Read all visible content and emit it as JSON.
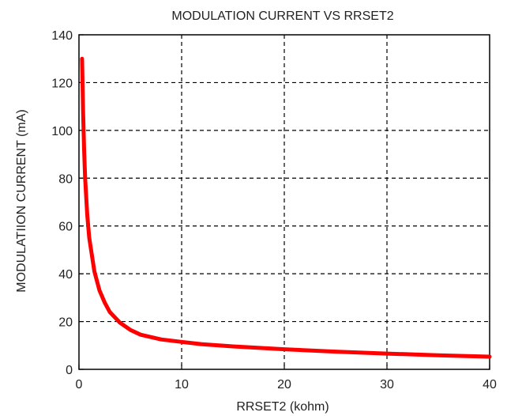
{
  "chart_data": {
    "type": "line",
    "title": "MODULATION CURRENT VS RRSET2",
    "xlabel": "RRSET2 (kohm)",
    "ylabel": "MODULATIION CURRENT (mA)",
    "xlim": [
      0,
      40
    ],
    "ylim": [
      0,
      140
    ],
    "xticks": [
      0,
      10,
      20,
      30,
      40
    ],
    "yticks": [
      0,
      20,
      40,
      60,
      80,
      100,
      120,
      140
    ],
    "grid": true,
    "grid_style": "dashed",
    "line_color": "#ff0000",
    "series": [
      {
        "x": [
          0.3,
          0.4,
          0.5,
          0.6,
          0.8,
          1,
          1.5,
          2,
          2.5,
          3,
          4,
          5,
          6,
          8,
          10,
          12,
          15,
          20,
          25,
          30,
          35,
          40
        ],
        "values": [
          130,
          108,
          92,
          80,
          65,
          55,
          41,
          33,
          28,
          24,
          19.5,
          16.5,
          14.5,
          12.5,
          11.5,
          10.5,
          9.6,
          8.4,
          7.4,
          6.6,
          5.9,
          5.3
        ]
      }
    ]
  }
}
